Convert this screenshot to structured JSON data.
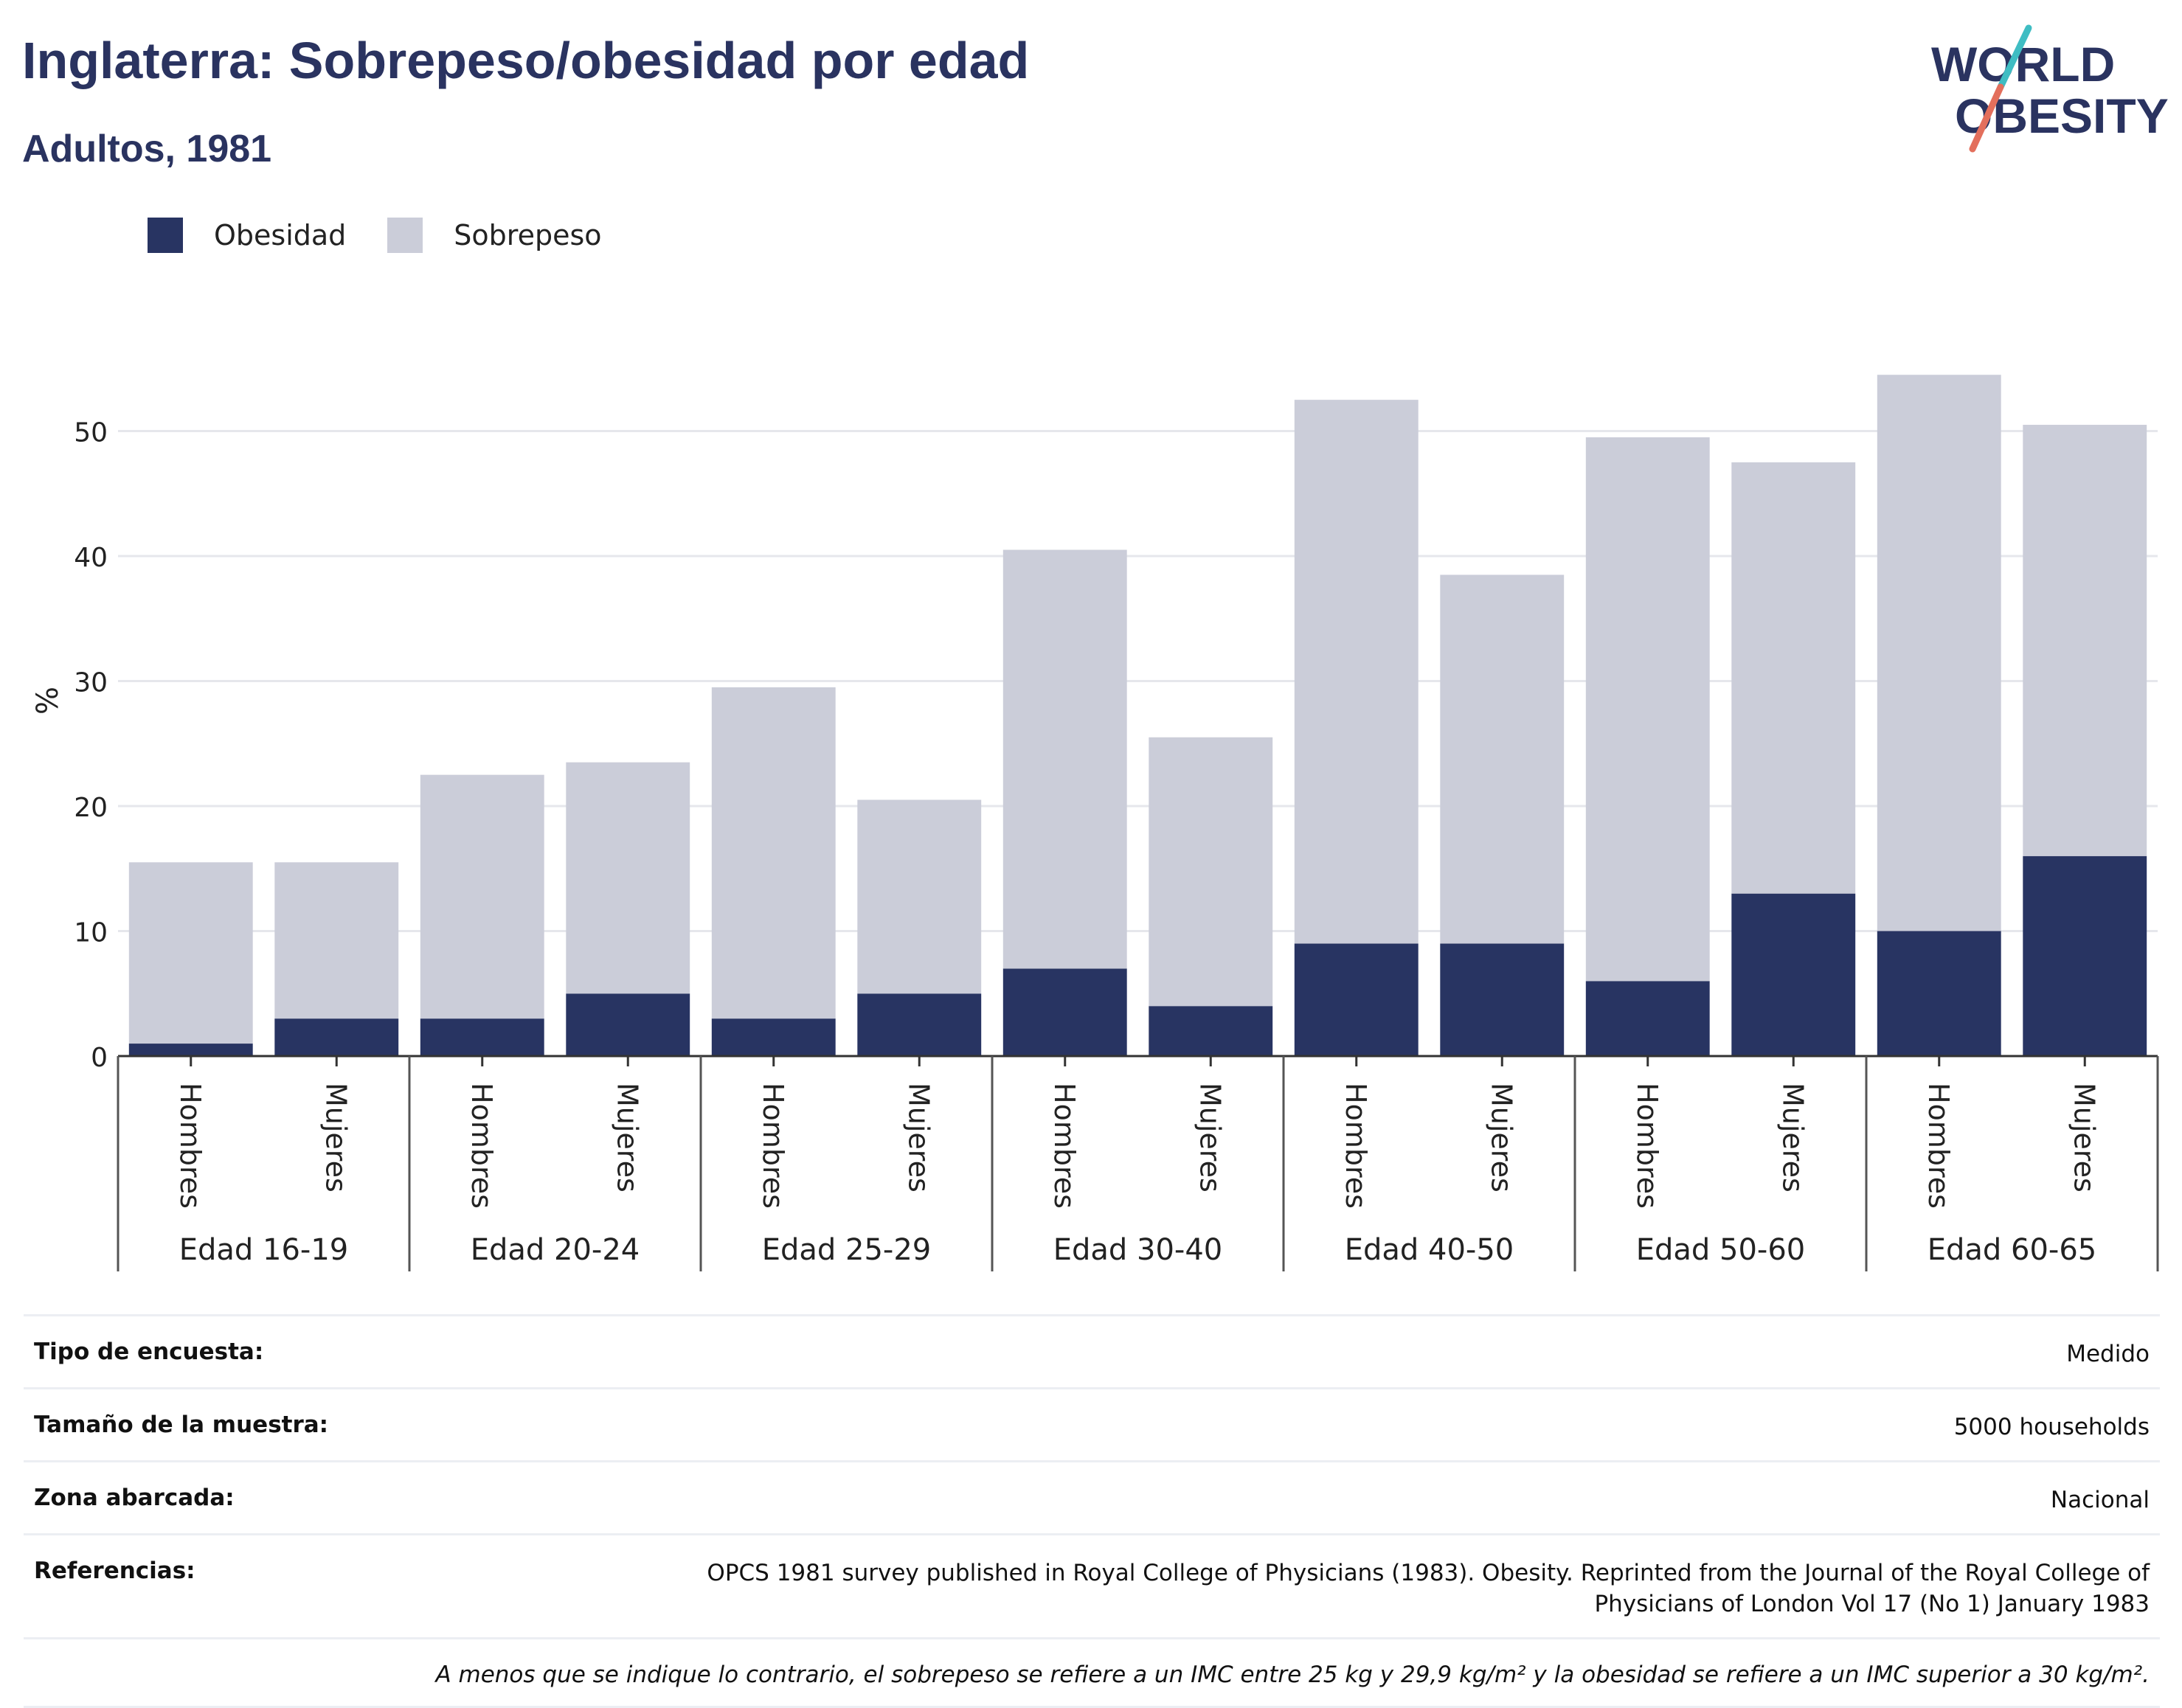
{
  "header": {
    "title": "Inglaterra: Sobrepeso/obesidad por edad",
    "subtitle": "Adultos, 1981"
  },
  "logo": {
    "line1": "WORLD",
    "line2": "OBESITY"
  },
  "legend": [
    {
      "label": "Obesidad",
      "color": "#283462"
    },
    {
      "label": "Sobrepeso",
      "color": "#cbcdd9"
    }
  ],
  "chart_data": {
    "type": "bar",
    "stacked": true,
    "ylabel": "%",
    "ylim": [
      0,
      55
    ],
    "yticks": [
      0,
      10,
      20,
      30,
      40,
      50
    ],
    "grid": true,
    "legend_position": "top-left",
    "groups": [
      "Edad 16-19",
      "Edad 20-24",
      "Edad 25-29",
      "Edad 30-40",
      "Edad 40-50",
      "Edad 50-60",
      "Edad 60-65"
    ],
    "categories": [
      "Hombres",
      "Mujeres",
      "Hombres",
      "Mujeres",
      "Hombres",
      "Mujeres",
      "Hombres",
      "Mujeres",
      "Hombres",
      "Mujeres",
      "Hombres",
      "Mujeres",
      "Hombres",
      "Mujeres"
    ],
    "series": [
      {
        "name": "Obesidad",
        "color": "#283462",
        "values": [
          1,
          3,
          3,
          5,
          3,
          5,
          7,
          4,
          9,
          9,
          6,
          13,
          10,
          16
        ]
      },
      {
        "name": "Sobrepeso",
        "color": "#cbcdd9",
        "values": [
          14.5,
          12.5,
          19.5,
          18.5,
          26.5,
          15.5,
          33.5,
          21.5,
          43.5,
          29.5,
          43.5,
          34.5,
          44.5,
          34.5
        ]
      }
    ]
  },
  "meta": {
    "rows": [
      {
        "key": "Tipo de encuesta:",
        "value": "Medido"
      },
      {
        "key": "Tamaño de la muestra:",
        "value": "5000 households"
      },
      {
        "key": "Zona abarcada:",
        "value": "Nacional"
      },
      {
        "key": "Referencias:",
        "value": "OPCS 1981 survey published in Royal College of Physicians (1983). Obesity. Reprinted from the Journal of the Royal College of Physicians of London Vol 17 (No 1) January 1983"
      }
    ],
    "note": "A menos que se indique lo contrario, el sobrepeso se refiere a un IMC entre 25 kg y 29,9 kg/m² y la obesidad se refiere a un IMC superior a 30 kg/m²."
  }
}
